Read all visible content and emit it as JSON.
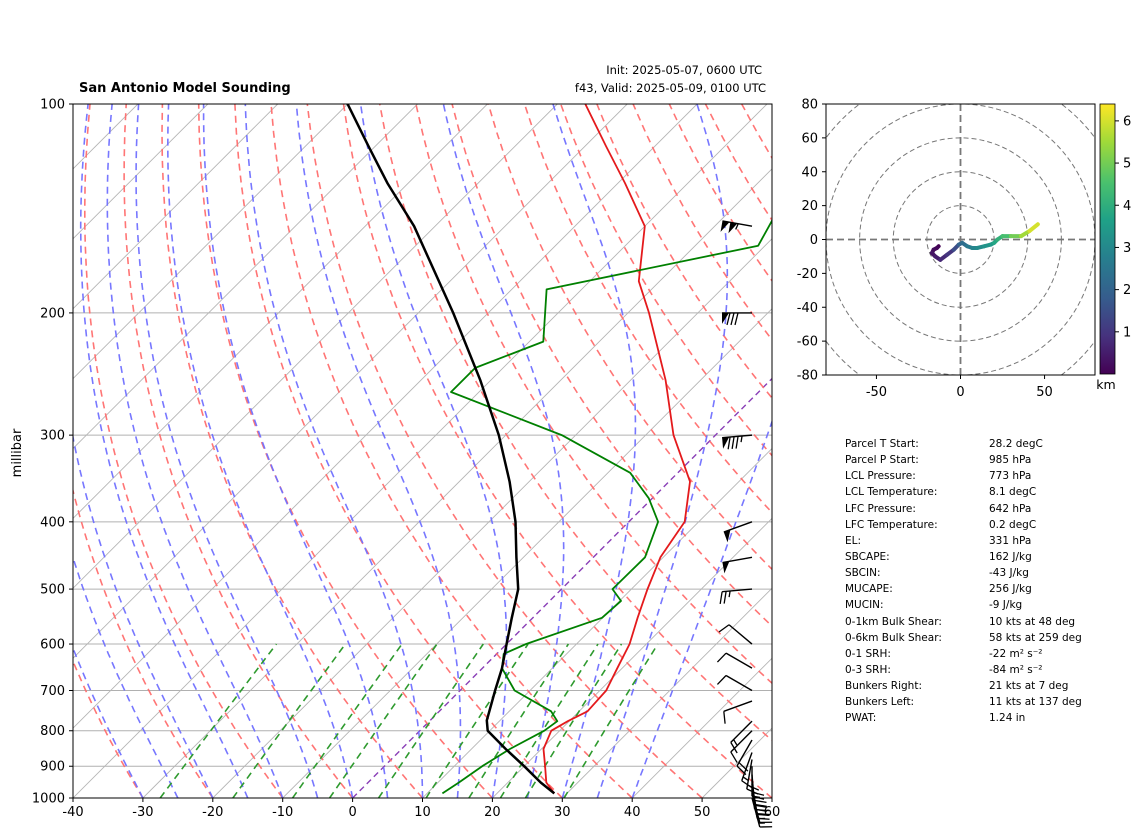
{
  "header": {
    "title": "San Antonio Model Sounding",
    "init": "Init: 2025-05-07, 0600 UTC",
    "valid": "f43, Valid: 2025-05-09, 0100 UTC"
  },
  "chart_data": [
    {
      "type": "line",
      "subtype": "skew-t log-p",
      "title": "San Antonio Model Sounding",
      "ylabel": "millibar",
      "xlim": [
        -40,
        60
      ],
      "ylim": [
        1000,
        100
      ],
      "y_scale": "log",
      "x_ticks": [
        -40,
        -30,
        -20,
        -10,
        0,
        10,
        20,
        30,
        40,
        50,
        60
      ],
      "y_ticks": [
        1000,
        900,
        800,
        700,
        600,
        500,
        400,
        300,
        200,
        100
      ],
      "grid": true,
      "colors": {
        "temperature": "#e41a1c",
        "dewpoint": "#008000",
        "parcel": "#000000",
        "dry_adiabat": "#ff6e6e",
        "moist_adiabat": "#7070ff",
        "mixing_ratio": "#2e9a2e",
        "isotherm": "#bdbdbd",
        "zero_isotherm": "#8a3fb7"
      },
      "series": [
        {
          "role": "temperature",
          "p": [
            985,
            950,
            900,
            850,
            800,
            775,
            750,
            700,
            650,
            600,
            550,
            500,
            450,
            400,
            350,
            300,
            250,
            200,
            180,
            150,
            130,
            115,
            100
          ],
          "t": [
            28.2,
            25.5,
            23,
            20.3,
            18.8,
            19.8,
            21.2,
            20.9,
            19.3,
            17.6,
            15,
            12.3,
            9.6,
            8,
            3,
            -6,
            -15,
            -27,
            -33,
            -40,
            -49,
            -57,
            -66
          ]
        },
        {
          "role": "dewpoint",
          "p": [
            985,
            950,
            900,
            850,
            800,
            775,
            750,
            700,
            650,
            620,
            600,
            550,
            520,
            500,
            450,
            400,
            370,
            340,
            300,
            260,
            240,
            220,
            185,
            160,
            130,
            115,
            100
          ],
          "t": [
            12.2,
            13,
            14,
            15.5,
            17.8,
            18.3,
            16,
            7.8,
            2.8,
            1,
            2.8,
            9.9,
            10.2,
            7.3,
            7.4,
            4.2,
            -0.5,
            -6.8,
            -22,
            -44,
            -44,
            -38,
            -45,
            -21,
            -25,
            -23,
            -22
          ]
        },
        {
          "role": "parcel",
          "p": [
            985,
            950,
            900,
            850,
            800,
            773,
            700,
            650,
            600,
            550,
            500,
            450,
            400,
            350,
            300,
            250,
            200,
            150,
            130,
            115,
            100
          ],
          "t": [
            28.2,
            24.7,
            20,
            14.9,
            9.7,
            8.1,
            5,
            2.8,
            0,
            -3,
            -6.2,
            -11,
            -16.2,
            -22.8,
            -31,
            -41.5,
            -55,
            -73,
            -83,
            -91,
            -100
          ]
        }
      ],
      "wind_barbs": [
        {
          "p": 1000,
          "speed": 15,
          "dir": 165
        },
        {
          "p": 985,
          "speed": 15,
          "dir": 165
        },
        {
          "p": 970,
          "speed": 20,
          "dir": 170
        },
        {
          "p": 955,
          "speed": 20,
          "dir": 170
        },
        {
          "p": 940,
          "speed": 20,
          "dir": 175
        },
        {
          "p": 925,
          "speed": 25,
          "dir": 175
        },
        {
          "p": 900,
          "speed": 20,
          "dir": 180
        },
        {
          "p": 880,
          "speed": 20,
          "dir": 190
        },
        {
          "p": 860,
          "speed": 15,
          "dir": 200
        },
        {
          "p": 825,
          "speed": 20,
          "dir": 210
        },
        {
          "p": 800,
          "speed": 10,
          "dir": 225
        },
        {
          "p": 775,
          "speed": 15,
          "dir": 225
        },
        {
          "p": 725,
          "speed": 10,
          "dir": 250
        },
        {
          "p": 700,
          "speed": 10,
          "dir": 300
        },
        {
          "p": 650,
          "speed": 10,
          "dir": 300
        },
        {
          "p": 600,
          "speed": 10,
          "dir": 310
        },
        {
          "p": 500,
          "speed": 25,
          "dir": 265
        },
        {
          "p": 450,
          "speed": 50,
          "dir": 260
        },
        {
          "p": 400,
          "speed": 50,
          "dir": 250
        },
        {
          "p": 300,
          "speed": 85,
          "dir": 265
        },
        {
          "p": 200,
          "speed": 80,
          "dir": 270
        },
        {
          "p": 150,
          "speed": 105,
          "dir": 280
        }
      ]
    },
    {
      "type": "line",
      "subtype": "hodograph",
      "xlim": [
        -80,
        80
      ],
      "ylim": [
        -80,
        80
      ],
      "x_ticks": [
        -50,
        0,
        50
      ],
      "y_ticks": [
        -80,
        -60,
        -40,
        -20,
        0,
        20,
        40,
        60,
        80
      ],
      "rings": [
        10,
        20,
        30,
        40,
        50,
        60,
        70,
        80
      ],
      "u": [
        -13,
        -14,
        -16,
        -17,
        -15,
        -12,
        -8,
        -4,
        -1,
        1,
        4,
        7,
        10,
        14,
        18,
        20,
        22,
        25,
        30,
        36,
        41,
        46
      ],
      "v": [
        -4,
        -5,
        -6,
        -8,
        -10,
        -12,
        -9,
        -6,
        -3,
        -2,
        -4,
        -5,
        -5,
        -4,
        -3,
        -2,
        0,
        2,
        2,
        2,
        5,
        9
      ],
      "height": [
        0.0,
        0.1,
        0.2,
        0.35,
        0.5,
        0.75,
        1.0,
        1.5,
        2.0,
        2.3,
        2.6,
        2.9,
        3.1,
        3.3,
        3.5,
        3.8,
        4.1,
        4.5,
        5.0,
        5.5,
        6.0,
        6.4
      ],
      "colorbar": {
        "label": "km",
        "ticks": [
          1,
          2,
          3,
          4,
          5,
          6
        ],
        "range": [
          0,
          6.4
        ],
        "colormap": "viridis"
      }
    }
  ],
  "parameters": [
    {
      "name": "Parcel T Start:",
      "value": "28.2 degC"
    },
    {
      "name": "Parcel P Start:",
      "value": "985 hPa"
    },
    {
      "name": "LCL Pressure:",
      "value": "773 hPa"
    },
    {
      "name": "LCL Temperature:",
      "value": "8.1 degC"
    },
    {
      "name": "LFC Pressure:",
      "value": "642 hPa"
    },
    {
      "name": "LFC Temperature:",
      "value": "0.2 degC"
    },
    {
      "name": "EL:",
      "value": "331 hPa"
    },
    {
      "name": "SBCAPE:",
      "value": "162 J/kg"
    },
    {
      "name": "SBCIN:",
      "value": "-43 J/kg"
    },
    {
      "name": "MUCAPE:",
      "value": "256 J/kg"
    },
    {
      "name": "MUCIN:",
      "value": "-9 J/kg"
    },
    {
      "name": "0-1km Bulk Shear:",
      "value": "10 kts at 48 deg"
    },
    {
      "name": "0-6km Bulk Shear:",
      "value": "58 kts at 259 deg"
    },
    {
      "name": "0-1 SRH:",
      "value": "-22 m² s⁻²"
    },
    {
      "name": "0-3 SRH:",
      "value": "-84 m² s⁻²"
    },
    {
      "name": "Bunkers Right:",
      "value": "21 kts at 7 deg"
    },
    {
      "name": "Bunkers Left:",
      "value": "11 kts at 137 deg"
    },
    {
      "name": "PWAT:",
      "value": "1.24 in"
    }
  ]
}
